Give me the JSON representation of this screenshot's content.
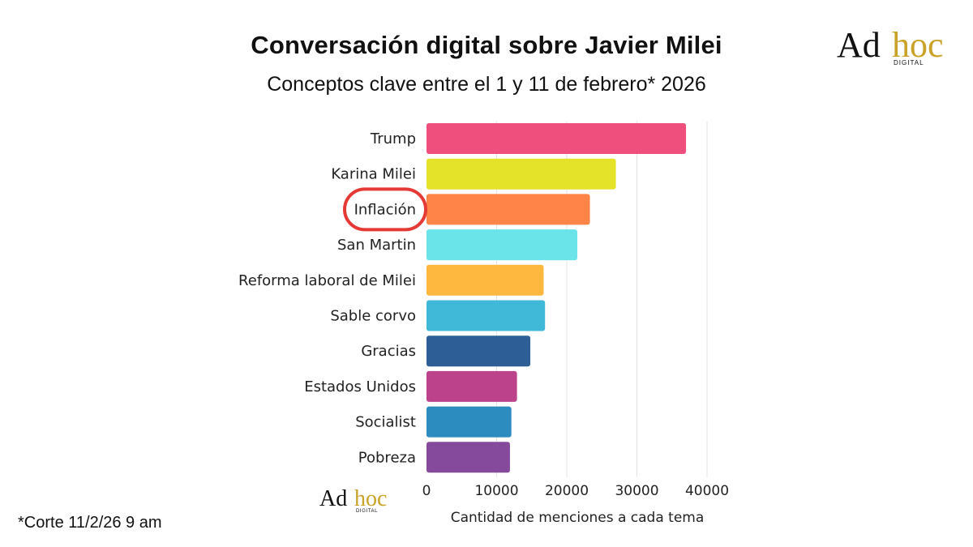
{
  "header": {
    "title": "Conversación digital sobre Javier Milei",
    "subtitle": "Conceptos clave entre el 1 y 11 de febrero* 2026"
  },
  "logo": {
    "ad": "Ad",
    "hoc": "hoc",
    "digital": "DIGITAL"
  },
  "footnote": "*Corte 11/2/26 9 am",
  "highlight": {
    "category": "Inflación",
    "color": "#e53935"
  },
  "chart_data": {
    "type": "bar",
    "orientation": "horizontal",
    "title": "Conversación digital sobre Javier Milei",
    "subtitle": "Conceptos clave entre el 1 y 11 de febrero* 2026",
    "xlabel": "Cantidad de menciones a cada tema",
    "ylabel": "",
    "xlim": [
      0,
      40000
    ],
    "xticks": [
      0,
      10000,
      20000,
      30000,
      40000
    ],
    "grid": true,
    "categories": [
      "Trump",
      "Karina Milei",
      "Inflación",
      "San Martin",
      "Reforma laboral de Milei",
      "Sable corvo",
      "Gracias",
      "Estados Unidos",
      "Socialist",
      "Pobreza"
    ],
    "values": [
      37000,
      27000,
      23300,
      21500,
      16700,
      16900,
      14800,
      12900,
      12100,
      11900
    ],
    "colors": [
      "#ee4f7c",
      "#e5e22a",
      "#fe8448",
      "#6ae4e8",
      "#feb840",
      "#40b8d8",
      "#2d5e96",
      "#bb428b",
      "#2c8bbf",
      "#864a9d"
    ]
  }
}
